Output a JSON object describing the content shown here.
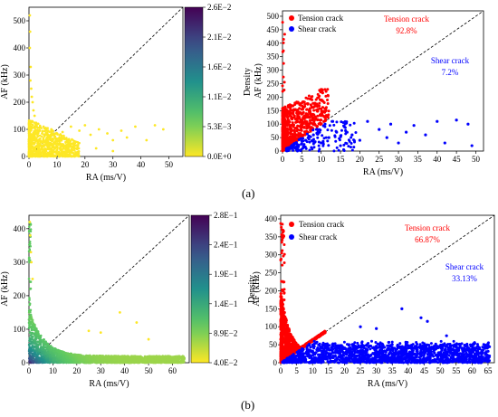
{
  "figure": {
    "panel_labels": [
      "(a)",
      "(b)"
    ]
  },
  "colors": {
    "tension": "#ff0000",
    "shear": "#0000ff",
    "density_low": "#fde725",
    "density_high": "#440154"
  },
  "chart_data": [
    {
      "id": "a-density",
      "type": "scatter",
      "xlabel": "RA (ms/V)",
      "ylabel": "AF (kHz)",
      "xlim": [
        0,
        55
      ],
      "ylim": [
        0,
        550
      ],
      "xticks": [
        "0",
        "10",
        "20",
        "30",
        "40",
        "50"
      ],
      "yticks": [
        "0",
        "100",
        "200",
        "300",
        "400",
        "500"
      ],
      "diagonal_line": "dashed",
      "colorbar": {
        "label": "Density",
        "range": [
          0.0,
          0.026
        ],
        "ticks": [
          "0.0E+0",
          "5.3E−3",
          "1.1E−2",
          "1.6E−2",
          "2.1E−2",
          "2.6E−2"
        ]
      },
      "points": [
        [
          0.3,
          520
        ],
        [
          0.4,
          460
        ],
        [
          0.3,
          400
        ],
        [
          0.6,
          330
        ],
        [
          0.5,
          280
        ],
        [
          0.8,
          250
        ],
        [
          1.0,
          220
        ],
        [
          1.3,
          200
        ],
        [
          1.6,
          170
        ],
        [
          2.0,
          150
        ],
        [
          1.2,
          130
        ],
        [
          3.0,
          120
        ],
        [
          4.0,
          110
        ],
        [
          6,
          105
        ],
        [
          8,
          100
        ],
        [
          12,
          90
        ],
        [
          15,
          110
        ],
        [
          18,
          95
        ],
        [
          20,
          115
        ],
        [
          22,
          80
        ],
        [
          25,
          100
        ],
        [
          28,
          85
        ],
        [
          30,
          60
        ],
        [
          33,
          95
        ],
        [
          35,
          70
        ],
        [
          38,
          110
        ],
        [
          42,
          60
        ],
        [
          45,
          115
        ],
        [
          48,
          100
        ],
        [
          10,
          60
        ],
        [
          14,
          40
        ],
        [
          24,
          30
        ],
        [
          30,
          20
        ]
      ]
    },
    {
      "id": "a-classified",
      "type": "scatter",
      "xlabel": "RA (ms/V)",
      "ylabel": "AF (kHz)",
      "xlim": [
        0,
        52
      ],
      "ylim": [
        0,
        520
      ],
      "xticks": [
        "0",
        "5",
        "10",
        "15",
        "20",
        "25",
        "30",
        "35",
        "40",
        "45",
        "50"
      ],
      "yticks": [
        "0",
        "50",
        "100",
        "150",
        "200",
        "250",
        "300",
        "350",
        "400",
        "450",
        "500"
      ],
      "diagonal_line": "dashed",
      "legend": {
        "position": "top-left",
        "entries": [
          "Tension crack",
          "Shear crack"
        ]
      },
      "annotations": {
        "tension_label": "Tension crack",
        "tension_pct": "92.8%",
        "shear_label": "Shear crack",
        "shear_pct": "7.2%"
      },
      "shear_points": [
        [
          6,
          40
        ],
        [
          8,
          60
        ],
        [
          9,
          80
        ],
        [
          10,
          30
        ],
        [
          11,
          100
        ],
        [
          12,
          50
        ],
        [
          13,
          110
        ],
        [
          14,
          70
        ],
        [
          15,
          20
        ],
        [
          16,
          90
        ],
        [
          18,
          60
        ],
        [
          20,
          40
        ],
        [
          22,
          110
        ],
        [
          25,
          80
        ],
        [
          27,
          50
        ],
        [
          28,
          100
        ],
        [
          30,
          30
        ],
        [
          32,
          70
        ],
        [
          34,
          95
        ],
        [
          37,
          60
        ],
        [
          40,
          110
        ],
        [
          42,
          30
        ],
        [
          45,
          115
        ],
        [
          48,
          100
        ],
        [
          49,
          20
        ]
      ]
    },
    {
      "id": "b-density",
      "type": "scatter",
      "xlabel": "RA (ms/V)",
      "ylabel": "AF (kHz)",
      "xlim": [
        0,
        67
      ],
      "ylim": [
        0,
        440
      ],
      "xticks": [
        "0",
        "10",
        "20",
        "30",
        "40",
        "50",
        "60"
      ],
      "yticks": [
        "0",
        "100",
        "200",
        "300",
        "400"
      ],
      "diagonal_line": "dashed",
      "colorbar": {
        "label": "Density",
        "range": [
          0.04,
          0.28
        ],
        "ticks": [
          "4.0E−2",
          "8.9E−2",
          "1.4E−1",
          "1.9E−1",
          "2.4E−1",
          "2.8E−1"
        ]
      },
      "outliers": [
        [
          0.3,
          420
        ],
        [
          0.5,
          380
        ],
        [
          0.8,
          330
        ],
        [
          1.0,
          300
        ],
        [
          1.5,
          250
        ],
        [
          38,
          150
        ],
        [
          45,
          120
        ],
        [
          25,
          95
        ],
        [
          30,
          90
        ],
        [
          50,
          70
        ]
      ]
    },
    {
      "id": "b-classified",
      "type": "scatter",
      "xlabel": "RA (ms/V)",
      "ylabel": "AF (kHz)",
      "xlim": [
        0,
        67
      ],
      "ylim": [
        0,
        410
      ],
      "xticks": [
        "0",
        "5",
        "10",
        "15",
        "20",
        "25",
        "30",
        "35",
        "40",
        "45",
        "50",
        "55",
        "60",
        "65"
      ],
      "yticks": [
        "0",
        "50",
        "100",
        "150",
        "200",
        "250",
        "300",
        "350",
        "400"
      ],
      "diagonal_line": "dashed",
      "legend": {
        "position": "top-left",
        "entries": [
          "Tension crack",
          "Shear crack"
        ]
      },
      "annotations": {
        "tension_label": "Tension crack",
        "tension_pct": "66.87%",
        "shear_label": "Shear crack",
        "shear_pct": "33.13%"
      },
      "outliers": [
        [
          38,
          150
        ],
        [
          44,
          125
        ],
        [
          46,
          115
        ],
        [
          25,
          100
        ],
        [
          30,
          95
        ],
        [
          52,
          75
        ]
      ]
    }
  ]
}
